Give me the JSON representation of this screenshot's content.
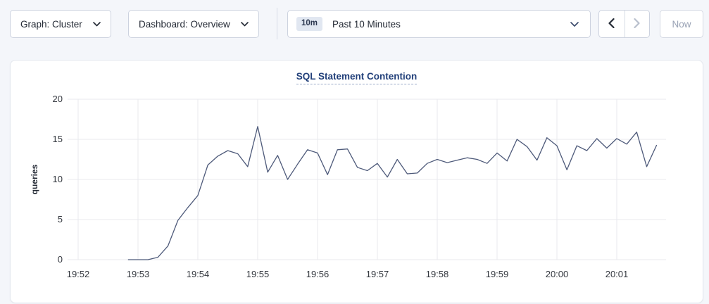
{
  "toolbar": {
    "graph_dropdown": {
      "label": "Graph: Cluster"
    },
    "dashboard_dropdown": {
      "label": "Dashboard: Overview"
    },
    "time_picker": {
      "badge": "10m",
      "label": "Past 10 Minutes"
    },
    "now_button": {
      "label": "Now"
    }
  },
  "chart_data": {
    "type": "line",
    "title": "SQL Statement Contention",
    "xlabel": "",
    "ylabel": "queries",
    "ylim": [
      0,
      20
    ],
    "y_ticks": [
      0,
      5,
      10,
      15,
      20
    ],
    "x_ticks": [
      "19:52",
      "19:53",
      "19:54",
      "19:55",
      "19:56",
      "19:57",
      "19:58",
      "19:59",
      "20:00",
      "20:01"
    ],
    "grid": true,
    "legend_position": "none",
    "line_color": "#4e5a7a",
    "grid_color": "#e8eaee",
    "series": [
      {
        "name": "queries",
        "start_time": "19:52:50",
        "interval_seconds": 10,
        "values": [
          0,
          0,
          0,
          0.3,
          1.7,
          4.9,
          6.5,
          8,
          11.8,
          12.9,
          13.6,
          13.2,
          11.6,
          16.6,
          10.9,
          13,
          10,
          11.9,
          13.7,
          13.3,
          10.6,
          13.7,
          13.8,
          11.5,
          11.1,
          12,
          10.3,
          12.5,
          10.7,
          10.8,
          12,
          12.5,
          12.1,
          12.4,
          12.7,
          12.5,
          12,
          13.3,
          12.3,
          15,
          14.1,
          12.4,
          15.2,
          14.2,
          11.2,
          14.2,
          13.6,
          15.1,
          13.9,
          15.1,
          14.4,
          15.9,
          11.6,
          14.3
        ]
      }
    ]
  }
}
